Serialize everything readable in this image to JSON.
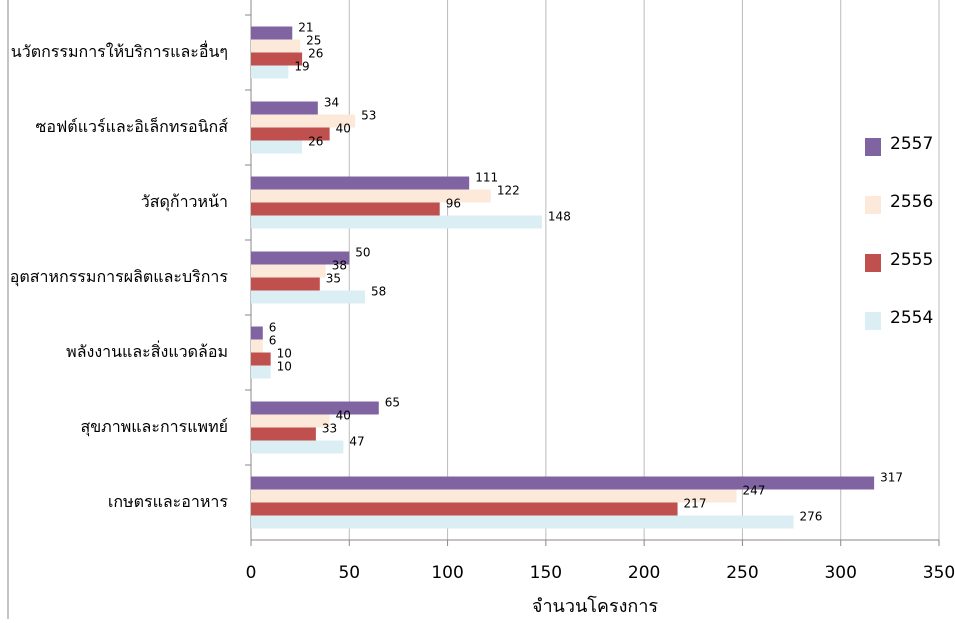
{
  "chart_data": {
    "type": "hbar",
    "x_label": "จำนวนโครงการ",
    "categories": [
      "นวัตกรรมการให้บริการและอื่นๆ",
      "ซอฟต์แวร์และอิเล็กทรอนิกส์",
      "วัสดุก้าวหน้า",
      "อุตสาหกรรมการผลิตและบริการ",
      "พลังงานและสิ่งแวดล้อม",
      "สุขภาพและการแพทย์",
      "เกษตรและอาหาร"
    ],
    "series": [
      {
        "name": "2557",
        "color": "#8064a2",
        "values": [
          21,
          34,
          111,
          50,
          6,
          65,
          317
        ]
      },
      {
        "name": "2556",
        "color": "#fde9d9",
        "values": [
          25,
          53,
          122,
          38,
          6,
          40,
          247
        ]
      },
      {
        "name": "2555",
        "color": "#c0504d",
        "values": [
          26,
          40,
          96,
          35,
          10,
          33,
          217
        ]
      },
      {
        "name": "2554",
        "color": "#dbeef3",
        "values": [
          19,
          26,
          148,
          58,
          10,
          47,
          276
        ]
      }
    ],
    "xlim": [
      0,
      350
    ],
    "xticks": [
      0,
      50,
      100,
      150,
      200,
      250,
      300,
      350
    ],
    "grid": true
  }
}
